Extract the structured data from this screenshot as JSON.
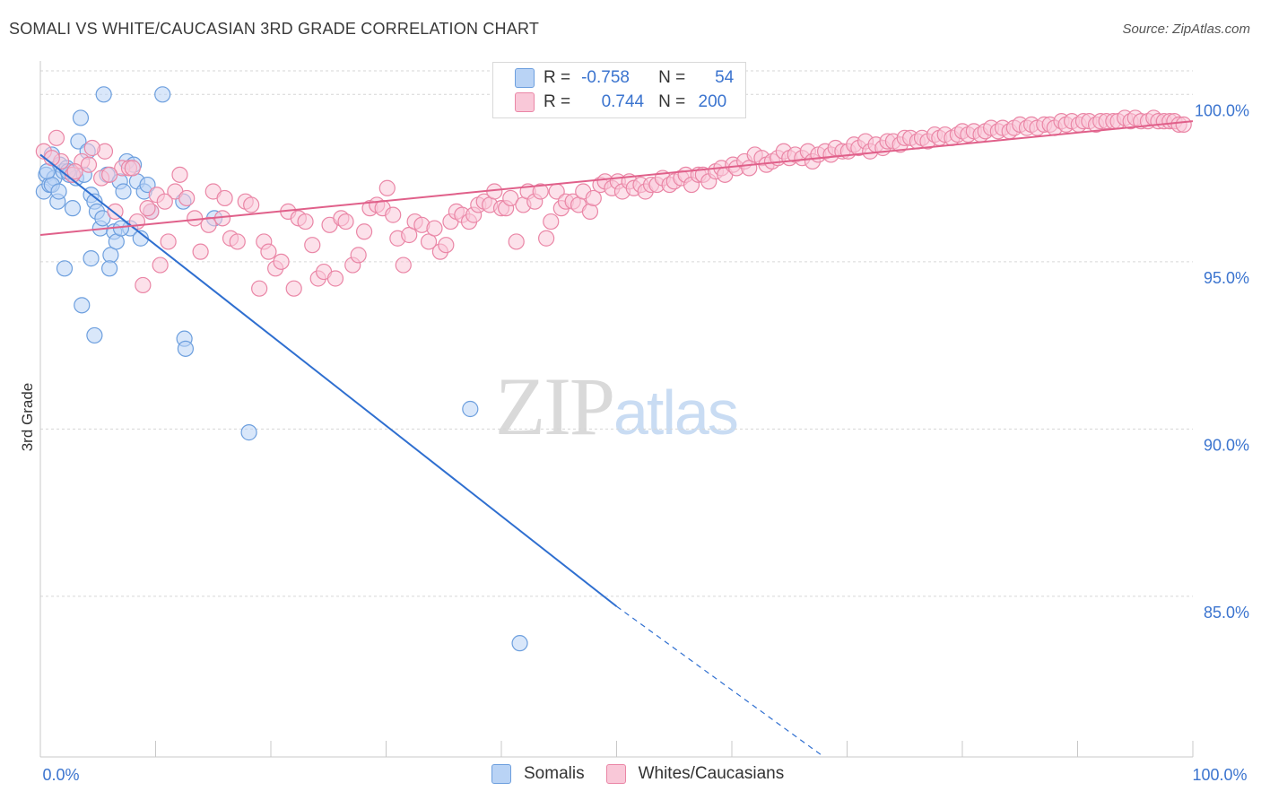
{
  "title": "SOMALI VS WHITE/CAUCASIAN 3RD GRADE CORRELATION CHART",
  "source": "Source: ZipAtlas.com",
  "watermark": {
    "zip": "ZIP",
    "atlas": "atlas"
  },
  "legend": {
    "r_label": "R =",
    "n_label": "N =",
    "rows": [
      {
        "r": "-0.758",
        "n": "54",
        "color": "#a8c8f0",
        "border": "#6d9fde"
      },
      {
        "r": "0.744",
        "n": "200",
        "color": "#f7bdd0",
        "border": "#ea86a6"
      }
    ]
  },
  "bottom_legend": [
    {
      "label": "Somalis",
      "color": "#b9d3f5",
      "border": "#6d9fde"
    },
    {
      "label": "Whites/Caucasians",
      "color": "#f9c8d8",
      "border": "#ea86a6"
    }
  ],
  "chart_data": {
    "type": "scatter",
    "title": "SOMALI VS WHITE/CAUCASIAN 3RD GRADE CORRELATION CHART",
    "xlabel": "",
    "ylabel": "3rd Grade",
    "xlim": [
      0,
      100
    ],
    "ylim": [
      80.2,
      101.0
    ],
    "x_tick_labels": [
      "0.0%",
      "100.0%"
    ],
    "y_ticks": [
      85,
      90,
      95,
      100
    ],
    "y_tick_labels": [
      "85.0%",
      "90.0%",
      "95.0%",
      "100.0%"
    ],
    "series": [
      {
        "name": "Somalis",
        "color": "#6d9fde",
        "fill": "#b9d3f5",
        "trend": {
          "x0": 0,
          "y0": 98.2,
          "x1": 50,
          "y1": 84.7,
          "dash_to_x": 68,
          "dash_to_y": 80.2,
          "color": "#2f6fd0"
        },
        "points": [
          [
            0.3,
            97.1
          ],
          [
            0.5,
            97.6
          ],
          [
            0.8,
            97.3
          ],
          [
            1.0,
            98.2
          ],
          [
            1.2,
            97.5
          ],
          [
            1.5,
            96.8
          ],
          [
            1.7,
            97.9
          ],
          [
            2.0,
            97.7
          ],
          [
            2.3,
            97.8
          ],
          [
            2.5,
            97.6
          ],
          [
            2.8,
            96.6
          ],
          [
            3.1,
            97.5
          ],
          [
            3.3,
            98.6
          ],
          [
            3.5,
            99.3
          ],
          [
            3.8,
            97.6
          ],
          [
            4.1,
            98.3
          ],
          [
            4.4,
            97.0
          ],
          [
            4.7,
            96.8
          ],
          [
            4.9,
            96.5
          ],
          [
            5.2,
            96.0
          ],
          [
            5.5,
            100.0
          ],
          [
            5.8,
            97.6
          ],
          [
            6.1,
            95.2
          ],
          [
            6.4,
            95.9
          ],
          [
            6.6,
            95.6
          ],
          [
            6.9,
            97.4
          ],
          [
            7.2,
            97.1
          ],
          [
            7.5,
            98.0
          ],
          [
            7.8,
            96.0
          ],
          [
            8.1,
            97.9
          ],
          [
            8.4,
            97.4
          ],
          [
            8.7,
            95.7
          ],
          [
            9.0,
            97.1
          ],
          [
            9.3,
            97.3
          ],
          [
            9.6,
            96.5
          ],
          [
            10.6,
            100.0
          ],
          [
            12.4,
            96.8
          ],
          [
            12.5,
            92.7
          ],
          [
            12.6,
            92.4
          ],
          [
            15.1,
            96.3
          ],
          [
            18.1,
            89.9
          ],
          [
            37.3,
            90.6
          ],
          [
            41.6,
            83.6
          ],
          [
            2.1,
            94.8
          ],
          [
            4.4,
            95.1
          ],
          [
            3.6,
            93.7
          ],
          [
            4.7,
            92.8
          ],
          [
            6.0,
            94.8
          ],
          [
            1.0,
            97.3
          ],
          [
            0.6,
            97.7
          ],
          [
            2.4,
            97.7
          ],
          [
            7.0,
            96.0
          ],
          [
            5.4,
            96.3
          ],
          [
            1.6,
            97.1
          ]
        ]
      },
      {
        "name": "Whites/Caucasians",
        "color": "#ea86a6",
        "fill": "#f9c8d8",
        "trend": {
          "x0": 0,
          "y0": 95.8,
          "x1": 100,
          "y1": 99.2,
          "color": "#e0608a"
        },
        "points": [
          [
            0.3,
            98.3
          ],
          [
            1.4,
            98.7
          ],
          [
            1.8,
            98.0
          ],
          [
            2.8,
            97.6
          ],
          [
            3.6,
            98.0
          ],
          [
            4.2,
            97.9
          ],
          [
            5.3,
            97.5
          ],
          [
            5.6,
            98.3
          ],
          [
            6.5,
            96.5
          ],
          [
            7.1,
            97.8
          ],
          [
            7.7,
            97.8
          ],
          [
            8.4,
            96.2
          ],
          [
            8.9,
            94.3
          ],
          [
            9.6,
            96.5
          ],
          [
            10.1,
            97.0
          ],
          [
            10.4,
            94.9
          ],
          [
            11.1,
            95.6
          ],
          [
            11.7,
            97.1
          ],
          [
            12.1,
            97.6
          ],
          [
            12.7,
            96.9
          ],
          [
            13.4,
            96.3
          ],
          [
            13.9,
            95.3
          ],
          [
            14.6,
            96.1
          ],
          [
            15.0,
            97.1
          ],
          [
            15.8,
            96.3
          ],
          [
            16.0,
            96.9
          ],
          [
            16.5,
            95.7
          ],
          [
            17.1,
            95.6
          ],
          [
            17.8,
            96.8
          ],
          [
            18.3,
            96.7
          ],
          [
            19.0,
            94.2
          ],
          [
            19.4,
            95.6
          ],
          [
            19.8,
            95.3
          ],
          [
            20.4,
            94.8
          ],
          [
            20.9,
            95.0
          ],
          [
            21.5,
            96.5
          ],
          [
            22.0,
            94.2
          ],
          [
            22.4,
            96.3
          ],
          [
            23.0,
            96.2
          ],
          [
            23.6,
            95.5
          ],
          [
            24.1,
            94.5
          ],
          [
            24.6,
            94.7
          ],
          [
            25.1,
            96.1
          ],
          [
            25.6,
            94.5
          ],
          [
            26.1,
            96.3
          ],
          [
            26.5,
            96.2
          ],
          [
            27.1,
            94.9
          ],
          [
            27.6,
            95.2
          ],
          [
            28.1,
            95.9
          ],
          [
            28.6,
            96.6
          ],
          [
            29.2,
            96.7
          ],
          [
            29.7,
            96.6
          ],
          [
            30.1,
            97.2
          ],
          [
            30.6,
            96.4
          ],
          [
            31.0,
            95.7
          ],
          [
            31.5,
            94.9
          ],
          [
            32.0,
            95.8
          ],
          [
            32.5,
            96.2
          ],
          [
            33.1,
            96.1
          ],
          [
            33.7,
            95.6
          ],
          [
            34.2,
            96.0
          ],
          [
            34.7,
            95.3
          ],
          [
            35.2,
            95.5
          ],
          [
            35.6,
            96.2
          ],
          [
            36.1,
            96.5
          ],
          [
            36.6,
            96.4
          ],
          [
            37.2,
            96.2
          ],
          [
            37.6,
            96.4
          ],
          [
            38.0,
            96.7
          ],
          [
            38.5,
            96.8
          ],
          [
            39.0,
            96.7
          ],
          [
            39.4,
            97.1
          ],
          [
            40.0,
            96.6
          ],
          [
            40.4,
            96.6
          ],
          [
            40.8,
            96.9
          ],
          [
            41.3,
            95.6
          ],
          [
            41.9,
            96.7
          ],
          [
            42.3,
            97.1
          ],
          [
            42.9,
            96.8
          ],
          [
            43.4,
            97.1
          ],
          [
            43.9,
            95.7
          ],
          [
            44.3,
            96.2
          ],
          [
            44.8,
            97.1
          ],
          [
            45.2,
            96.6
          ],
          [
            45.6,
            96.8
          ],
          [
            46.2,
            96.8
          ],
          [
            46.7,
            96.7
          ],
          [
            47.1,
            97.1
          ],
          [
            47.7,
            96.5
          ],
          [
            48.0,
            96.9
          ],
          [
            48.6,
            97.3
          ],
          [
            49.0,
            97.4
          ],
          [
            49.6,
            97.2
          ],
          [
            50.1,
            97.4
          ],
          [
            50.5,
            97.1
          ],
          [
            51.1,
            97.4
          ],
          [
            51.5,
            97.2
          ],
          [
            52.1,
            97.3
          ],
          [
            52.5,
            97.1
          ],
          [
            53.0,
            97.3
          ],
          [
            53.5,
            97.3
          ],
          [
            54.0,
            97.5
          ],
          [
            54.6,
            97.3
          ],
          [
            55.0,
            97.4
          ],
          [
            55.6,
            97.5
          ],
          [
            56.0,
            97.6
          ],
          [
            56.5,
            97.3
          ],
          [
            57.1,
            97.6
          ],
          [
            57.5,
            97.6
          ],
          [
            58.0,
            97.4
          ],
          [
            58.6,
            97.7
          ],
          [
            59.1,
            97.8
          ],
          [
            59.4,
            97.6
          ],
          [
            60.1,
            97.9
          ],
          [
            60.4,
            97.8
          ],
          [
            61.1,
            98.0
          ],
          [
            61.5,
            97.8
          ],
          [
            62.0,
            98.2
          ],
          [
            62.6,
            98.1
          ],
          [
            63.0,
            97.9
          ],
          [
            63.5,
            98.0
          ],
          [
            64.0,
            98.1
          ],
          [
            64.5,
            98.3
          ],
          [
            65.0,
            98.1
          ],
          [
            65.5,
            98.2
          ],
          [
            66.1,
            98.1
          ],
          [
            66.6,
            98.3
          ],
          [
            67.0,
            98.0
          ],
          [
            67.5,
            98.2
          ],
          [
            68.1,
            98.3
          ],
          [
            68.6,
            98.2
          ],
          [
            69.0,
            98.4
          ],
          [
            69.6,
            98.3
          ],
          [
            70.1,
            98.3
          ],
          [
            70.6,
            98.5
          ],
          [
            71.0,
            98.4
          ],
          [
            71.6,
            98.6
          ],
          [
            72.0,
            98.3
          ],
          [
            72.5,
            98.5
          ],
          [
            73.1,
            98.4
          ],
          [
            73.5,
            98.6
          ],
          [
            74.0,
            98.6
          ],
          [
            74.6,
            98.5
          ],
          [
            75.0,
            98.7
          ],
          [
            75.5,
            98.7
          ],
          [
            76.1,
            98.6
          ],
          [
            76.5,
            98.7
          ],
          [
            77.0,
            98.6
          ],
          [
            77.6,
            98.8
          ],
          [
            78.0,
            98.7
          ],
          [
            78.5,
            98.8
          ],
          [
            79.1,
            98.7
          ],
          [
            79.6,
            98.8
          ],
          [
            80.0,
            98.9
          ],
          [
            80.5,
            98.8
          ],
          [
            81.0,
            98.9
          ],
          [
            81.6,
            98.8
          ],
          [
            82.0,
            98.9
          ],
          [
            82.5,
            99.0
          ],
          [
            83.1,
            98.9
          ],
          [
            83.5,
            99.0
          ],
          [
            84.1,
            98.9
          ],
          [
            84.5,
            99.0
          ],
          [
            85.0,
            99.1
          ],
          [
            85.6,
            99.0
          ],
          [
            86.0,
            99.1
          ],
          [
            86.5,
            99.0
          ],
          [
            87.1,
            99.1
          ],
          [
            87.6,
            99.1
          ],
          [
            88.0,
            99.0
          ],
          [
            88.6,
            99.2
          ],
          [
            89.0,
            99.1
          ],
          [
            89.5,
            99.2
          ],
          [
            90.1,
            99.1
          ],
          [
            90.5,
            99.2
          ],
          [
            91.0,
            99.2
          ],
          [
            91.6,
            99.1
          ],
          [
            92.0,
            99.2
          ],
          [
            92.5,
            99.2
          ],
          [
            93.1,
            99.2
          ],
          [
            93.5,
            99.2
          ],
          [
            94.1,
            99.3
          ],
          [
            94.6,
            99.2
          ],
          [
            95.0,
            99.3
          ],
          [
            95.5,
            99.2
          ],
          [
            96.1,
            99.2
          ],
          [
            96.6,
            99.3
          ],
          [
            97.0,
            99.2
          ],
          [
            97.5,
            99.2
          ],
          [
            98.0,
            99.2
          ],
          [
            98.4,
            99.2
          ],
          [
            98.8,
            99.1
          ],
          [
            99.2,
            99.1
          ],
          [
            1.0,
            98.1
          ],
          [
            3.0,
            97.7
          ],
          [
            4.5,
            98.4
          ],
          [
            6.0,
            97.6
          ],
          [
            8.0,
            97.8
          ],
          [
            9.3,
            96.6
          ],
          [
            10.8,
            96.8
          ]
        ]
      }
    ]
  }
}
